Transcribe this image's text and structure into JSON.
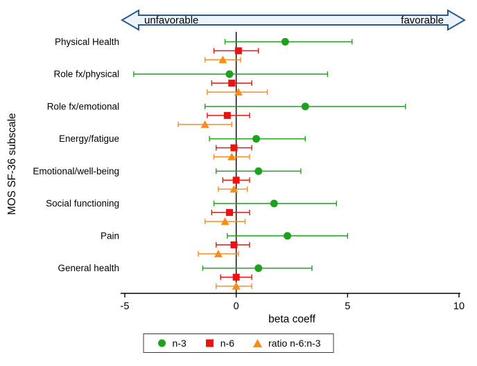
{
  "header": {
    "left_label": "unfavorable",
    "right_label": "favorable"
  },
  "chart_data": {
    "type": "scatter",
    "variant": "forest-plot",
    "title": "",
    "xlabel": "beta coeff",
    "ylabel": "MOS SF-36 subscale",
    "xlim": [
      -5,
      10
    ],
    "xticks": [
      -5,
      0,
      5,
      10
    ],
    "reference_line_x": 0,
    "grid": false,
    "legend_position": "bottom",
    "categories": [
      "Physical Health",
      "Role fx/physical",
      "Role fx/emotional",
      "Energy/fatigue",
      "Emotional/well-being",
      "Social functioning",
      "Pain",
      "General health"
    ],
    "series": [
      {
        "name": "n-3",
        "marker": "circle",
        "color": "#1fa01f",
        "values": [
          {
            "est": 2.2,
            "lo": -0.5,
            "hi": 5.2
          },
          {
            "est": -0.3,
            "lo": -4.6,
            "hi": 4.1
          },
          {
            "est": 3.1,
            "lo": -1.4,
            "hi": 7.6
          },
          {
            "est": 0.9,
            "lo": -1.2,
            "hi": 3.1
          },
          {
            "est": 1.0,
            "lo": -0.9,
            "hi": 2.9
          },
          {
            "est": 1.7,
            "lo": -1.0,
            "hi": 4.5
          },
          {
            "est": 2.3,
            "lo": -0.4,
            "hi": 5.0
          },
          {
            "est": 1.0,
            "lo": -1.5,
            "hi": 3.4
          }
        ]
      },
      {
        "name": "n-6",
        "marker": "square",
        "color": "#ee1111",
        "values": [
          {
            "est": 0.1,
            "lo": -1.0,
            "hi": 1.0
          },
          {
            "est": -0.2,
            "lo": -1.1,
            "hi": 0.7
          },
          {
            "est": -0.4,
            "lo": -1.3,
            "hi": 0.6
          },
          {
            "est": -0.1,
            "lo": -0.9,
            "hi": 0.7
          },
          {
            "est": 0.0,
            "lo": -0.6,
            "hi": 0.6
          },
          {
            "est": -0.3,
            "lo": -1.1,
            "hi": 0.6
          },
          {
            "est": -0.1,
            "lo": -0.9,
            "hi": 0.6
          },
          {
            "est": 0.0,
            "lo": -0.7,
            "hi": 0.7
          }
        ]
      },
      {
        "name": "ratio n-6:n-3",
        "marker": "triangle",
        "color": "#ff8c1a",
        "values": [
          {
            "est": -0.6,
            "lo": -1.4,
            "hi": 0.2
          },
          {
            "est": 0.1,
            "lo": -1.3,
            "hi": 1.4
          },
          {
            "est": -1.4,
            "lo": -2.6,
            "hi": -0.2
          },
          {
            "est": -0.2,
            "lo": -1.0,
            "hi": 0.6
          },
          {
            "est": -0.1,
            "lo": -0.8,
            "hi": 0.5
          },
          {
            "est": -0.5,
            "lo": -1.4,
            "hi": 0.4
          },
          {
            "est": -0.8,
            "lo": -1.7,
            "hi": 0.1
          },
          {
            "est": 0.0,
            "lo": -0.9,
            "hi": 0.7
          }
        ]
      }
    ]
  },
  "colors": {
    "arrow_fill": "#edf3fa",
    "arrow_stroke": "#2a5a8c",
    "axis": "#000000"
  }
}
